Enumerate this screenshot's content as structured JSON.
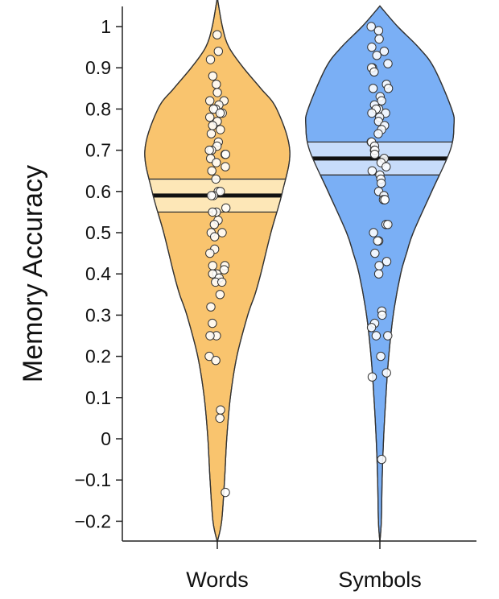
{
  "chart_data": {
    "type": "violin",
    "ylabel": "Memory Accuracy",
    "xlabel": "",
    "ylim": [
      -0.25,
      1.05
    ],
    "yticks": [
      1,
      0.9,
      0.8,
      0.7,
      0.6,
      0.5,
      0.4,
      0.3,
      0.2,
      0.1,
      0,
      -0.1,
      -0.2
    ],
    "ytick_labels": [
      "1",
      "0.9",
      "0.8",
      "0.7",
      "0.6",
      "0.5",
      "0.4",
      "0.3",
      "0.2",
      "0.1",
      "0",
      "−0.1",
      "−0.2"
    ],
    "categories": [
      "Words",
      "Symbols"
    ],
    "grid": false,
    "series": [
      {
        "category": "Words",
        "color": "#f9c46e",
        "band_color": "#fde7b7",
        "mean": 0.59,
        "ci": [
          0.55,
          0.63
        ],
        "density": [
          [
            -0.25,
            0.0
          ],
          [
            -0.2,
            0.06
          ],
          [
            -0.1,
            0.1
          ],
          [
            0.0,
            0.13
          ],
          [
            0.1,
            0.18
          ],
          [
            0.2,
            0.27
          ],
          [
            0.3,
            0.42
          ],
          [
            0.35,
            0.52
          ],
          [
            0.4,
            0.6
          ],
          [
            0.5,
            0.74
          ],
          [
            0.6,
            0.9
          ],
          [
            0.7,
            1.0
          ],
          [
            0.8,
            0.82
          ],
          [
            0.85,
            0.6
          ],
          [
            0.9,
            0.36
          ],
          [
            0.95,
            0.16
          ],
          [
            1.0,
            0.07
          ],
          [
            1.07,
            0.0
          ]
        ],
        "points": [
          0.98,
          0.94,
          0.92,
          0.88,
          0.86,
          0.84,
          0.82,
          0.82,
          0.81,
          0.8,
          0.8,
          0.79,
          0.79,
          0.78,
          0.77,
          0.76,
          0.75,
          0.74,
          0.72,
          0.71,
          0.7,
          0.7,
          0.69,
          0.69,
          0.68,
          0.67,
          0.66,
          0.65,
          0.63,
          0.6,
          0.6,
          0.59,
          0.59,
          0.56,
          0.55,
          0.55,
          0.53,
          0.52,
          0.5,
          0.5,
          0.49,
          0.46,
          0.45,
          0.42,
          0.42,
          0.41,
          0.4,
          0.4,
          0.39,
          0.38,
          0.38,
          0.35,
          0.32,
          0.28,
          0.25,
          0.25,
          0.2,
          0.19,
          0.07,
          0.05,
          -0.13
        ]
      },
      {
        "category": "Symbols",
        "color": "#7aaff5",
        "band_color": "#c7dcfa",
        "mean": 0.68,
        "ci": [
          0.64,
          0.72
        ],
        "density": [
          [
            -0.25,
            0.0
          ],
          [
            -0.2,
            0.02
          ],
          [
            -0.1,
            0.03
          ],
          [
            0.0,
            0.05
          ],
          [
            0.1,
            0.08
          ],
          [
            0.2,
            0.12
          ],
          [
            0.3,
            0.18
          ],
          [
            0.4,
            0.28
          ],
          [
            0.45,
            0.36
          ],
          [
            0.5,
            0.45
          ],
          [
            0.6,
            0.7
          ],
          [
            0.7,
            0.95
          ],
          [
            0.76,
            1.0
          ],
          [
            0.8,
            0.97
          ],
          [
            0.9,
            0.73
          ],
          [
            0.95,
            0.52
          ],
          [
            1.0,
            0.24
          ],
          [
            1.05,
            0.0
          ]
        ],
        "points": [
          1.0,
          0.99,
          0.97,
          0.95,
          0.94,
          0.93,
          0.91,
          0.9,
          0.9,
          0.89,
          0.86,
          0.85,
          0.85,
          0.83,
          0.82,
          0.81,
          0.8,
          0.8,
          0.79,
          0.79,
          0.78,
          0.77,
          0.76,
          0.75,
          0.74,
          0.72,
          0.72,
          0.71,
          0.7,
          0.7,
          0.69,
          0.68,
          0.67,
          0.66,
          0.65,
          0.64,
          0.63,
          0.62,
          0.6,
          0.59,
          0.58,
          0.58,
          0.58,
          0.52,
          0.52,
          0.5,
          0.48,
          0.48,
          0.45,
          0.43,
          0.42,
          0.4,
          0.31,
          0.3,
          0.28,
          0.27,
          0.25,
          0.25,
          0.2,
          0.16,
          0.15,
          -0.05
        ]
      }
    ]
  }
}
